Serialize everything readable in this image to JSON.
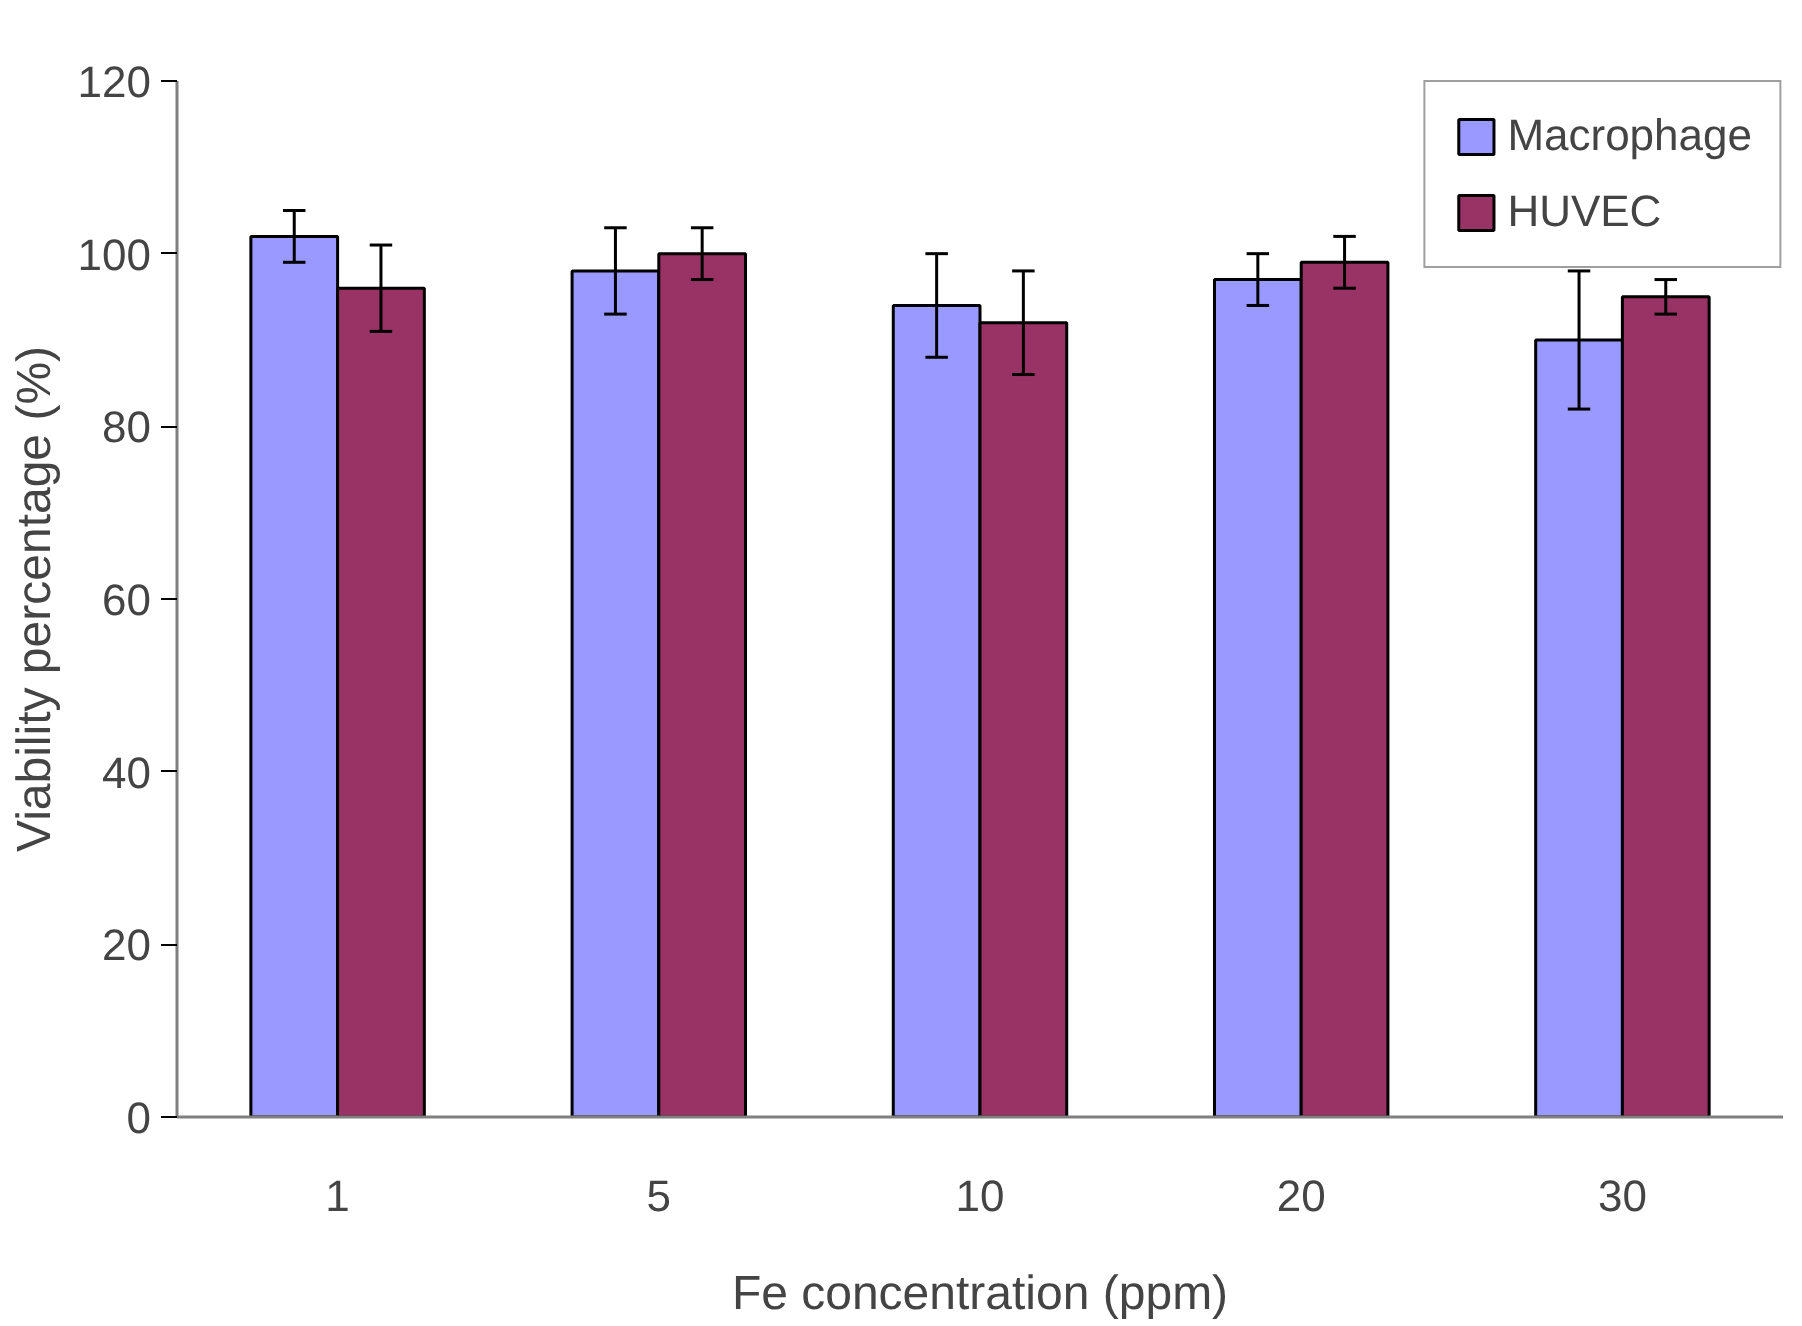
{
  "chart_data": {
    "type": "bar",
    "xlabel": "Fe concentration (ppm)",
    "ylabel": "Viability percentage (%)",
    "categories": [
      "1",
      "5",
      "10",
      "20",
      "30"
    ],
    "series": [
      {
        "name": "Macrophage",
        "color": "#9999ff",
        "values": [
          102,
          98,
          94,
          97,
          90
        ],
        "errors": [
          3,
          5,
          6,
          3,
          8
        ]
      },
      {
        "name": "HUVEC",
        "color": "#993366",
        "values": [
          96,
          100,
          92,
          99,
          95
        ],
        "errors": [
          5,
          3,
          6,
          3,
          2
        ]
      }
    ],
    "ylim": [
      0,
      120
    ],
    "yticks": [
      0,
      20,
      40,
      60,
      80,
      100,
      120
    ],
    "grid": false,
    "legend": "top right"
  }
}
